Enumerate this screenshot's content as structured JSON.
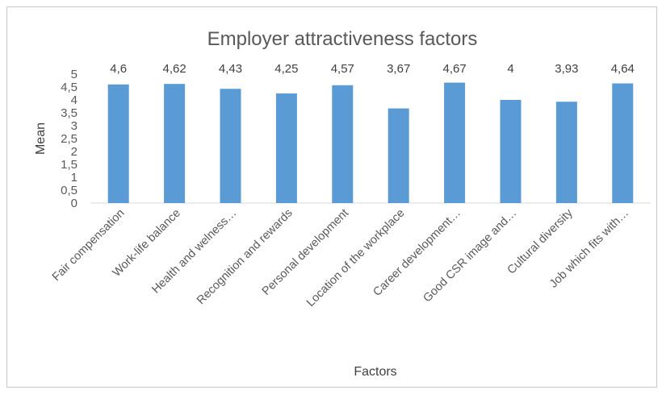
{
  "chart_data": {
    "type": "bar",
    "title": "Employer attractiveness factors",
    "xlabel": "Factors",
    "ylabel": "Mean",
    "categories": [
      "Fair compensation",
      "Work-life balance",
      "Health and welness…",
      "Recognition and rewards",
      "Personal development",
      "Location of the workplace",
      "Career development…",
      "Good CSR image and…",
      "Cultural diversity",
      "Job which fits with…"
    ],
    "values": [
      4.6,
      4.62,
      4.43,
      4.25,
      4.57,
      3.67,
      4.67,
      4,
      3.93,
      4.64
    ],
    "data_labels": [
      "4,6",
      "4,62",
      "4,43",
      "4,25",
      "4,57",
      "3,67",
      "4,67",
      "4",
      "3,93",
      "4,64"
    ],
    "ylim": [
      0,
      5
    ],
    "yticks": [
      0,
      0.5,
      1,
      1.5,
      2,
      2.5,
      3,
      3.5,
      4,
      4.5,
      5
    ],
    "ytick_labels": [
      "0",
      "0,5",
      "1",
      "1,5",
      "2",
      "2,5",
      "3",
      "3,5",
      "4",
      "4,5",
      "5"
    ],
    "grid": false,
    "legend": "none",
    "bar_color": "#5B9BD5"
  }
}
